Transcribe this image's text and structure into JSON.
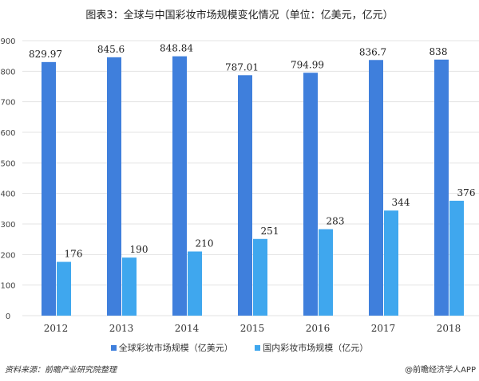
{
  "chart_data": {
    "type": "bar",
    "title": "图表3：全球与中国彩妆市场规模变化情况（单位：亿美元，亿元）",
    "categories": [
      "2012",
      "2013",
      "2014",
      "2015",
      "2016",
      "2017",
      "2018"
    ],
    "series": [
      {
        "name": "全球彩妆市场规模（亿美元）",
        "values": [
          829.97,
          845.6,
          848.84,
          787.01,
          794.99,
          836.7,
          838
        ],
        "labels": [
          "829.97",
          "845.6",
          "848.84",
          "787.01",
          "794.99",
          "836.7",
          "838"
        ],
        "color": "#3f7fdc"
      },
      {
        "name": "国内彩妆市场规模（亿元）",
        "values": [
          176,
          190,
          210,
          251,
          283,
          344,
          376
        ],
        "labels": [
          "176",
          "190",
          "210",
          "251",
          "283",
          "344",
          "376"
        ],
        "color": "#3fa7ee"
      }
    ],
    "ylim": [
      0,
      900
    ],
    "yticks": [
      "0",
      "100",
      "200",
      "300",
      "400",
      "500",
      "600",
      "700",
      "800",
      "900"
    ],
    "grid": true,
    "legend": "bottom"
  },
  "footer": {
    "source": "资料来源：前瞻产业研究院整理",
    "brand": "@前瞻经济学人APP"
  }
}
